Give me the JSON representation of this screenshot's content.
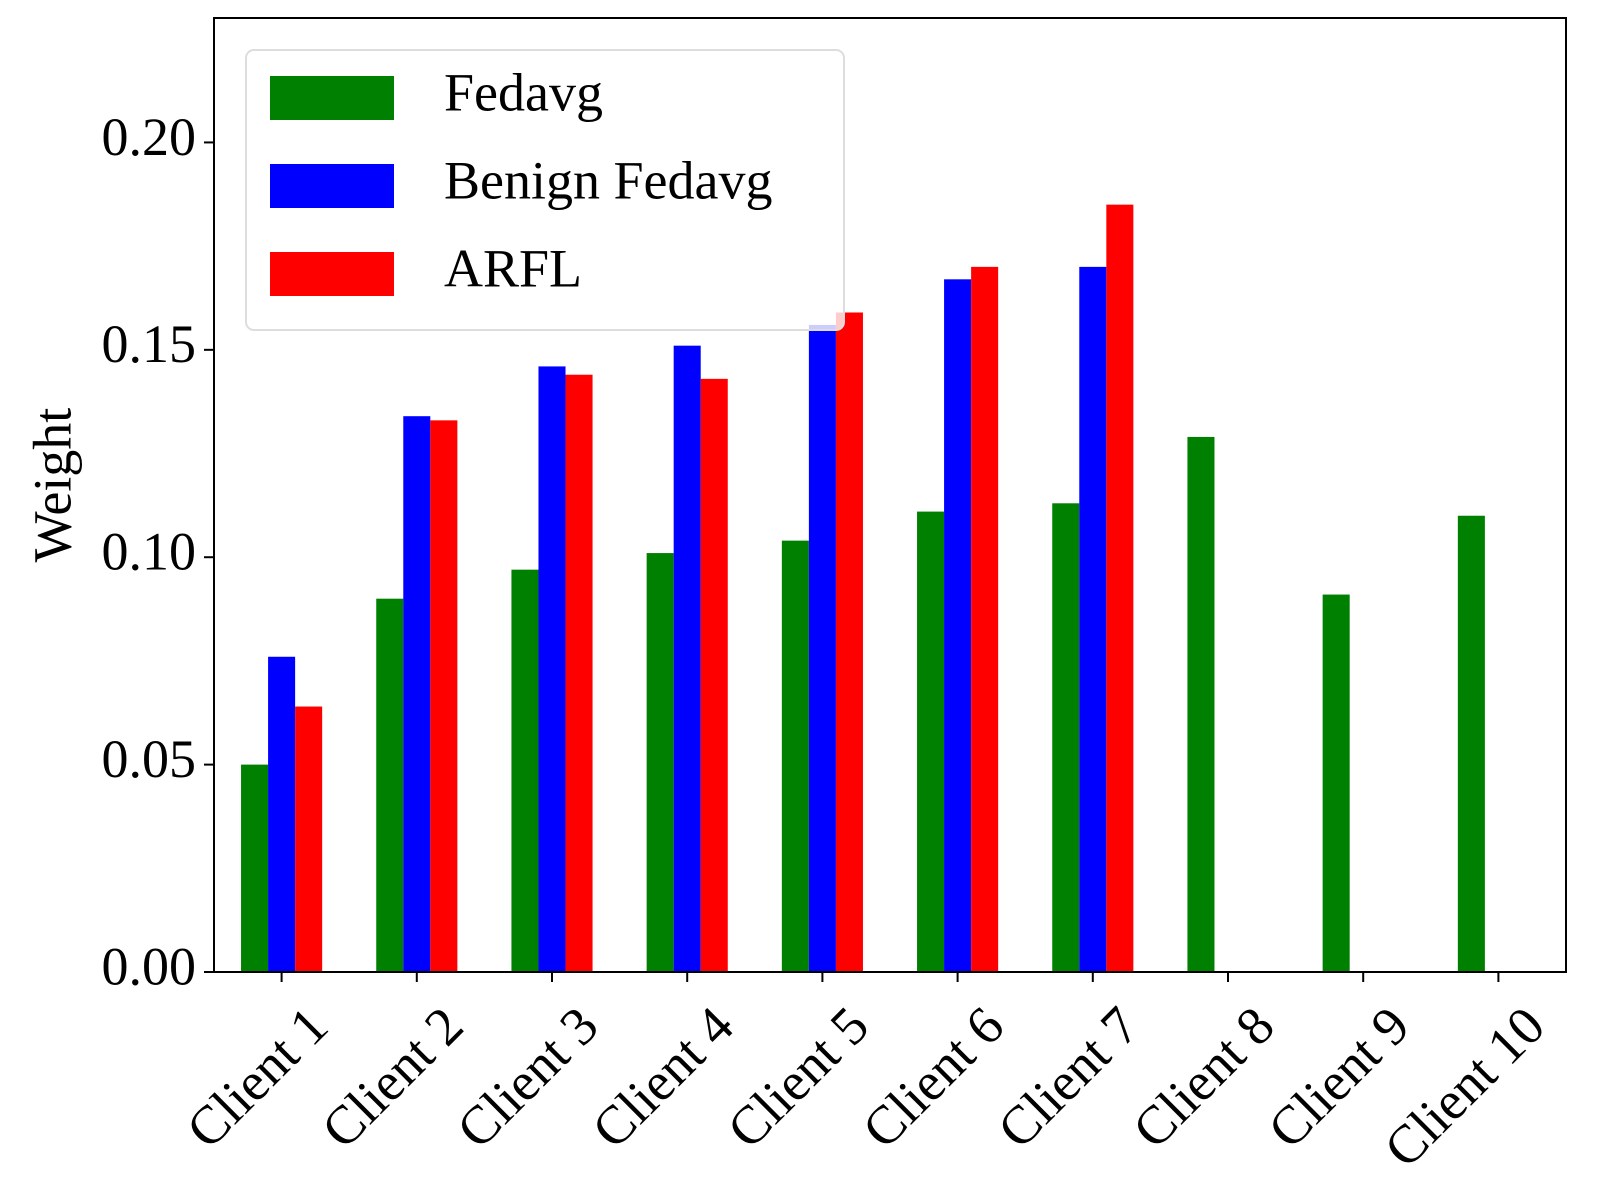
{
  "chart_data": {
    "type": "bar",
    "y_label": "Weight",
    "categories": [
      "Client 1",
      "Client 2",
      "Client 3",
      "Client 4",
      "Client 5",
      "Client 6",
      "Client 7",
      "Client 8",
      "Client 9",
      "Client 10"
    ],
    "series": [
      {
        "name": "Fedavg",
        "color": "#008000",
        "values": [
          0.05,
          0.09,
          0.097,
          0.101,
          0.104,
          0.111,
          0.113,
          0.129,
          0.091,
          0.11
        ]
      },
      {
        "name": "Benign Fedavg",
        "color": "#0000ff",
        "values": [
          0.076,
          0.134,
          0.146,
          0.151,
          0.156,
          0.167,
          0.17,
          null,
          null,
          null
        ]
      },
      {
        "name": "ARFL",
        "color": "#ff0000",
        "values": [
          0.064,
          0.133,
          0.144,
          0.143,
          0.159,
          0.17,
          0.185,
          null,
          null,
          null
        ]
      }
    ],
    "ylim": [
      0,
      0.23
    ],
    "yticks": [
      {
        "value": 0,
        "label": "0.00"
      },
      {
        "value": 0.05,
        "label": "0.05"
      },
      {
        "value": 0.1,
        "label": "0.10"
      },
      {
        "value": 0.15,
        "label": "0.15"
      },
      {
        "value": 0.2,
        "label": "0.20"
      }
    ],
    "legend": "upper left"
  }
}
